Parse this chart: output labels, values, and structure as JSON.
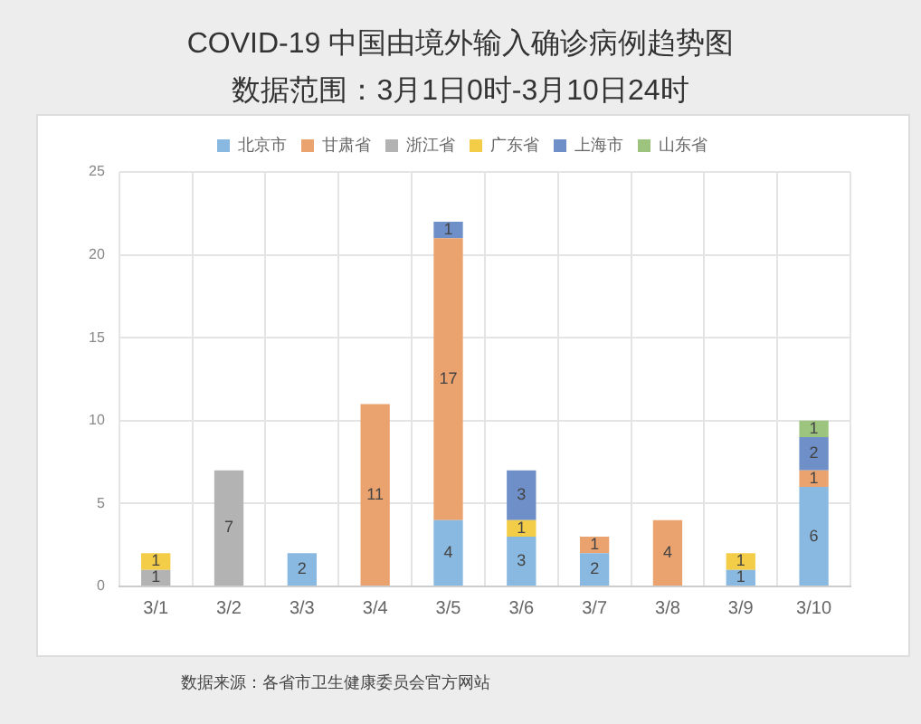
{
  "chart_data": {
    "type": "bar",
    "title": "COVID-19 中国由境外输入确诊病例趋势图",
    "subtitle": "数据范围：3月1日0时-3月10日24时",
    "annotations": [
      "数据来源：各省市卫生健康委员会官方网站"
    ],
    "categories": [
      "3/1",
      "3/2",
      "3/3",
      "3/4",
      "3/5",
      "3/6",
      "3/7",
      "3/8",
      "3/9",
      "3/10"
    ],
    "series": [
      {
        "name": "北京市",
        "color": "#89b9e0",
        "values": [
          null,
          null,
          2,
          null,
          4,
          3,
          2,
          null,
          1,
          6
        ]
      },
      {
        "name": "甘肃省",
        "color": "#eaa36f",
        "values": [
          null,
          null,
          null,
          11,
          17,
          null,
          1,
          4,
          null,
          1
        ]
      },
      {
        "name": "浙江省",
        "color": "#b3b3b3",
        "values": [
          1,
          7,
          null,
          null,
          null,
          null,
          null,
          null,
          null,
          null
        ]
      },
      {
        "name": "广东省",
        "color": "#f4cd48",
        "values": [
          1,
          null,
          null,
          null,
          null,
          1,
          null,
          null,
          1,
          null
        ]
      },
      {
        "name": "上海市",
        "color": "#6f8fc8",
        "values": [
          null,
          null,
          null,
          null,
          1,
          3,
          null,
          null,
          null,
          2
        ]
      },
      {
        "name": "山东省",
        "color": "#9cc47f",
        "values": [
          null,
          null,
          null,
          null,
          null,
          null,
          null,
          null,
          null,
          1
        ]
      }
    ],
    "stacked": true,
    "ylim": [
      0,
      25
    ],
    "yticks": [
      0,
      5,
      10,
      15,
      20,
      25
    ],
    "grid": true,
    "legend": "top",
    "data_labels": true
  }
}
